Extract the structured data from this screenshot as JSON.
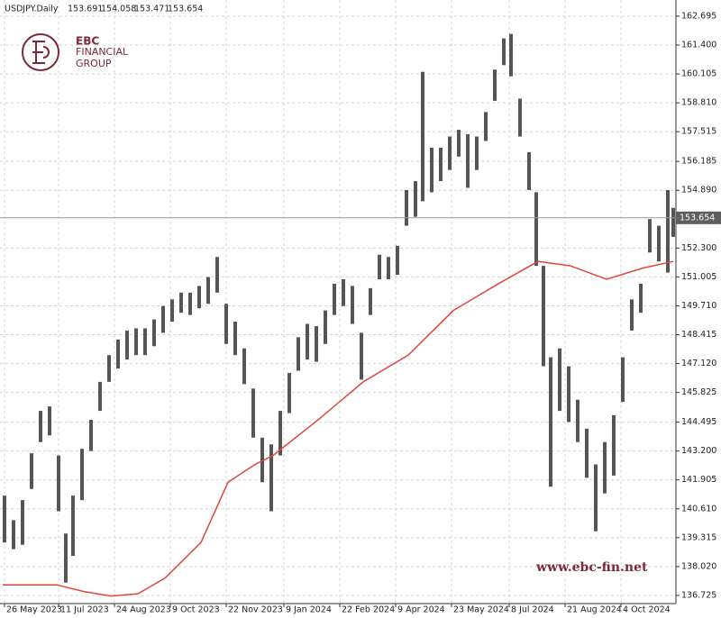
{
  "chart_data": {
    "type": "ohlc",
    "header": {
      "symbol": "USDJPY.Daily",
      "open": 153.691,
      "high": 154.058,
      "low": 153.471,
      "close": 153.654
    },
    "logo": {
      "line1": "EBC",
      "line2": "FINANCIAL",
      "line3": "GROUP"
    },
    "watermark": "www.ebc-fin.net",
    "bar_color": "#555555",
    "grid": true,
    "ylim": [
      136.36,
      163.42
    ],
    "xlim": [
      -1.5,
      373.5
    ],
    "yticks": [
      162.695,
      {
        "value": 161.4,
        "label": "161.400"
      },
      160.105,
      {
        "value": 158.81,
        "label": "158.810"
      },
      157.515,
      156.185,
      {
        "value": 154.89,
        "label": "154.890"
      },
      {
        "value": 152.3,
        "label": "152.300"
      },
      151.005,
      {
        "value": 149.71,
        "label": "149.710"
      },
      148.415,
      {
        "value": 147.12,
        "label": "147.120"
      },
      145.825,
      144.495,
      {
        "value": 143.2,
        "label": "143.200"
      },
      141.905,
      {
        "value": 140.61,
        "label": "140.610"
      },
      139.315,
      {
        "value": 138.02,
        "label": "138.020"
      },
      136.725
    ],
    "xticks": [
      {
        "value": 1,
        "label": "26 May 2023"
      },
      {
        "value": 31,
        "label": "11 Jul 2023"
      },
      {
        "value": 62,
        "label": "24 Aug 2023"
      },
      {
        "value": 93,
        "label": "9 Oct 2023"
      },
      {
        "value": 124,
        "label": "22 Nov 2023"
      },
      {
        "value": 156,
        "label": "9 Jan 2024"
      },
      {
        "value": 187,
        "label": "22 Feb 2024"
      },
      {
        "value": 218,
        "label": "9 Apr 2024"
      },
      {
        "value": 249,
        "label": "23 May 2024"
      },
      {
        "value": 281,
        "label": "8 Jul 2024"
      },
      {
        "value": 312,
        "label": "21 Aug 2024"
      },
      {
        "value": 343,
        "label": "4 Oct 2024"
      }
    ],
    "last_price": {
      "value": 153.654,
      "label": "153.654"
    },
    "x": [
      1,
      6,
      11,
      16,
      21,
      26,
      31,
      35,
      39,
      44,
      49,
      54,
      59,
      64,
      69,
      74,
      79,
      84,
      89,
      94,
      99,
      104,
      109,
      114,
      119,
      124,
      129,
      134,
      139,
      144,
      149,
      154,
      159,
      164,
      169,
      174,
      179,
      184,
      189,
      194,
      199,
      204,
      209,
      214,
      219,
      224,
      229,
      233,
      238,
      243,
      248,
      253,
      258,
      263,
      268,
      273,
      278,
      282,
      287,
      292,
      296,
      300,
      304,
      309,
      314,
      319,
      324,
      329,
      334,
      339,
      344,
      349,
      354,
      359,
      364,
      369,
      372
    ],
    "high": [
      141.2,
      140.1,
      141.0,
      143.1,
      145.0,
      145.2,
      143.0,
      139.5,
      141.2,
      143.3,
      144.6,
      146.3,
      147.5,
      148.2,
      148.6,
      148.7,
      148.7,
      149.1,
      149.7,
      150.0,
      150.3,
      150.3,
      150.6,
      151.0,
      151.9,
      149.8,
      149.0,
      147.8,
      146.0,
      143.8,
      143.5,
      145.0,
      146.7,
      148.3,
      148.9,
      148.8,
      149.5,
      150.7,
      150.9,
      150.6,
      148.5,
      150.5,
      152.0,
      151.9,
      152.4,
      154.9,
      155.3,
      160.2,
      156.8,
      156.8,
      157.3,
      157.6,
      157.4,
      157.3,
      158.4,
      160.3,
      161.7,
      161.9,
      159.0,
      156.6,
      154.8,
      151.5,
      147.4,
      147.8,
      147.0,
      145.5,
      144.2,
      142.6,
      143.6,
      144.8,
      147.4,
      150.0,
      150.7,
      153.6,
      153.3,
      154.9,
      154.1
    ],
    "low": [
      139.1,
      138.8,
      139.0,
      141.5,
      143.6,
      143.9,
      140.5,
      137.3,
      138.5,
      141.0,
      143.2,
      145.0,
      146.3,
      146.9,
      147.3,
      147.5,
      147.5,
      147.9,
      148.5,
      149.0,
      149.4,
      149.3,
      149.6,
      149.8,
      150.3,
      148.0,
      147.5,
      146.2,
      143.8,
      141.8,
      140.5,
      143.0,
      144.9,
      146.8,
      147.3,
      147.2,
      148.0,
      149.3,
      149.7,
      148.9,
      146.4,
      149.3,
      150.9,
      150.9,
      151.1,
      153.3,
      153.7,
      154.4,
      154.8,
      155.3,
      155.8,
      156.4,
      155.0,
      155.8,
      157.1,
      158.9,
      160.5,
      160.0,
      157.3,
      154.9,
      151.5,
      147.0,
      141.6,
      145.0,
      144.5,
      143.6,
      142.0,
      139.6,
      141.3,
      142.1,
      145.4,
      148.6,
      149.4,
      152.1,
      151.7,
      151.2,
      152.8
    ],
    "moving_average": {
      "color": "#e0463c",
      "x": [
        0,
        30,
        45,
        60,
        75,
        90,
        110,
        125,
        140,
        150,
        175,
        200,
        225,
        250,
        275,
        297,
        315,
        335,
        355,
        372
      ],
      "values": [
        137.2,
        137.2,
        136.9,
        136.7,
        136.8,
        137.5,
        139.1,
        141.8,
        142.6,
        143.0,
        144.6,
        146.3,
        147.5,
        149.5,
        150.7,
        151.7,
        151.5,
        150.9,
        151.4,
        151.7
      ]
    }
  }
}
